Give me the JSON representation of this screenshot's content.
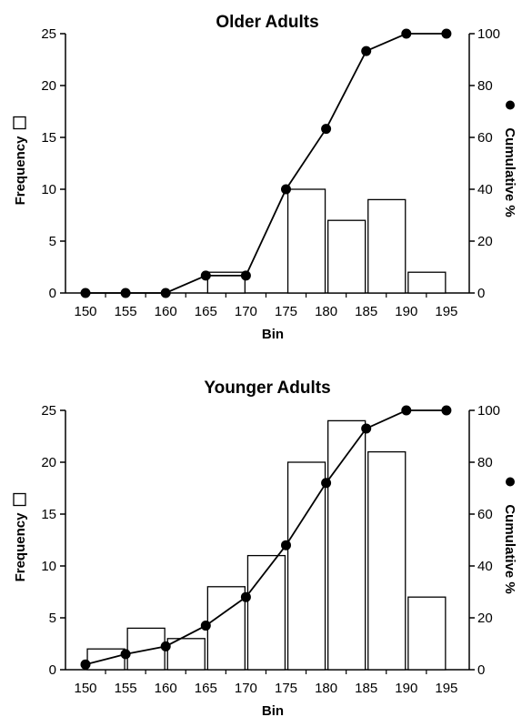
{
  "chart_data": [
    {
      "type": "bar",
      "title": "Older Adults",
      "xlabel": "Bin",
      "ylabel_left": "Frequency",
      "ylabel_right": "Cumulative %",
      "categories": [
        "150",
        "155",
        "160",
        "165",
        "170",
        "175",
        "180",
        "185",
        "190",
        "195"
      ],
      "ylim_left": [
        0,
        25
      ],
      "ylim_right": [
        0,
        100
      ],
      "yticks_left": [
        "0",
        "5",
        "10",
        "15",
        "20",
        "25"
      ],
      "yticks_right": [
        "0",
        "20",
        "40",
        "60",
        "80",
        "100"
      ],
      "grid": false,
      "series": [
        {
          "name": "Frequency",
          "type": "bar",
          "axis": "left",
          "values": [
            0,
            0,
            0,
            2,
            0,
            10,
            7,
            9,
            2,
            0
          ]
        },
        {
          "name": "Cumulative %",
          "type": "line",
          "axis": "right",
          "values": [
            0,
            0,
            0,
            6.7,
            6.7,
            40,
            63.3,
            93.3,
            100,
            100
          ]
        }
      ]
    },
    {
      "type": "bar",
      "title": "Younger Adults",
      "xlabel": "Bin",
      "ylabel_left": "Frequency",
      "ylabel_right": "Cumulative %",
      "categories": [
        "150",
        "155",
        "160",
        "165",
        "170",
        "175",
        "180",
        "185",
        "190",
        "195"
      ],
      "ylim_left": [
        0,
        25
      ],
      "ylim_right": [
        0,
        100
      ],
      "yticks_left": [
        "0",
        "5",
        "10",
        "15",
        "20",
        "25"
      ],
      "yticks_right": [
        "0",
        "20",
        "40",
        "60",
        "80",
        "100"
      ],
      "grid": false,
      "series": [
        {
          "name": "Frequency",
          "type": "bar",
          "axis": "left",
          "values": [
            2,
            4,
            3,
            8,
            11,
            20,
            24,
            21,
            7,
            0
          ]
        },
        {
          "name": "Cumulative %",
          "type": "line",
          "axis": "right",
          "values": [
            2,
            6,
            9,
            17,
            28,
            48,
            72,
            93,
            100,
            100
          ]
        }
      ]
    }
  ]
}
